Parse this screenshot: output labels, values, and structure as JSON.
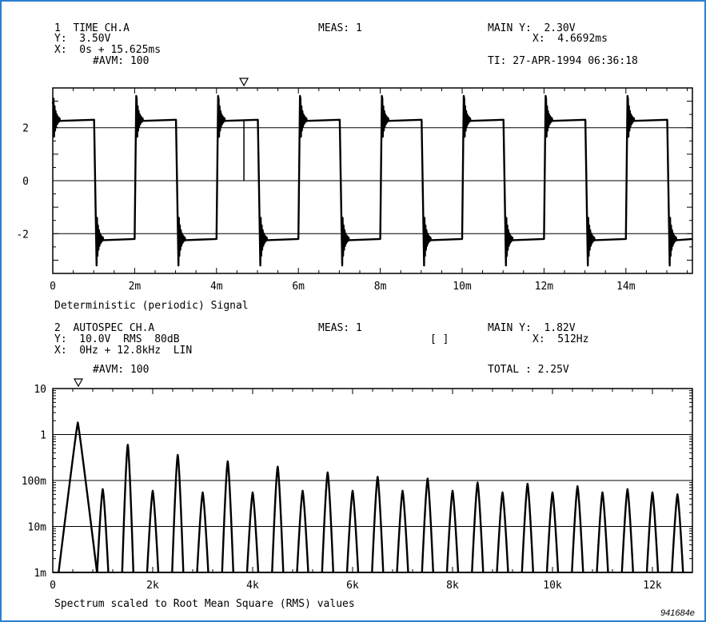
{
  "colors": {
    "border": "#2a7fd0",
    "ink": "#000000",
    "background": "#ffffff"
  },
  "figure_id": "941684e",
  "chart_data": [
    {
      "type": "line",
      "header": {
        "l1": "1  TIME CH.A",
        "l2": "Y:  3.50V",
        "l3": "X:  0s + 15.625ms",
        "l4": "#AVM: 100",
        "meas": "MEAS: 1",
        "main_y": "MAIN Y:  2.30V",
        "main_x": "X:  4.6692ms",
        "ti": "TI: 27-APR-1994 06:36:18"
      },
      "xlabel": "Deterministic (periodic) Signal",
      "xlim": [
        0,
        0.015625
      ],
      "ylim": [
        -3.5,
        3.5
      ],
      "x_ticks": [
        0,
        0.002,
        0.004,
        0.006,
        0.008,
        0.01,
        0.012,
        0.014
      ],
      "x_tick_labels": [
        "0",
        "2m",
        "4m",
        "6m",
        "8m",
        "10m",
        "12m",
        "14m"
      ],
      "y_ticks": [
        2,
        0,
        -2
      ],
      "y_tick_labels": [
        "2",
        "0",
        "-2"
      ],
      "gridlines_y": [
        2,
        0,
        -2
      ],
      "grid": false,
      "cursor_x": 0.0046692,
      "cursor_y": 2.3,
      "series": [
        {
          "waveform": "square",
          "period_s": 0.002,
          "first_rise_s": 0,
          "first_fall_s": 0.00103,
          "high_level_V": 2.3,
          "low_level_V": -2.2,
          "rise_overshoot_V": 3.2,
          "fall_undershoot_V": -3.2
        }
      ]
    },
    {
      "type": "line",
      "header": {
        "l1": "2  AUTOSPEC CH.A",
        "l2": "Y:  10.0V  RMS  80dB",
        "l3": "X:  0Hz + 12.8kHz  LIN",
        "l4": "#AVM: 100",
        "meas": "MEAS: 1",
        "brackets": "[ ]",
        "main_y": "MAIN Y:  1.82V",
        "main_x": "X:  512Hz",
        "total": "TOTAL : 2.25V"
      },
      "xlabel": "Spectrum scaled to Root Mean Square (RMS) values",
      "xlim": [
        0,
        12800
      ],
      "y_scale": "log",
      "ylim": [
        0.001,
        10
      ],
      "x_ticks": [
        0,
        2000,
        4000,
        6000,
        8000,
        10000,
        12000
      ],
      "x_tick_labels": [
        "0",
        "2k",
        "4k",
        "6k",
        "8k",
        "10k",
        "12k"
      ],
      "y_ticks": [
        10,
        1,
        0.1,
        0.01,
        0.001
      ],
      "y_tick_labels": [
        "10",
        "1",
        "100m",
        "10m",
        "1m"
      ],
      "gridlines_y": [
        1,
        0.1,
        0.01
      ],
      "grid": false,
      "cursor_x": 512,
      "series": [
        {
          "x": [
            500,
            1000,
            1500,
            2000,
            2500,
            3000,
            3500,
            4000,
            4500,
            5000,
            5500,
            6000,
            6500,
            7000,
            7500,
            8000,
            8500,
            9000,
            9500,
            10000,
            10500,
            11000,
            11500,
            12000,
            12500
          ],
          "values": [
            1.82,
            0.065,
            0.6,
            0.06,
            0.36,
            0.055,
            0.26,
            0.055,
            0.2,
            0.06,
            0.15,
            0.06,
            0.12,
            0.06,
            0.11,
            0.06,
            0.09,
            0.055,
            0.085,
            0.055,
            0.075,
            0.055,
            0.065,
            0.055,
            0.05
          ]
        }
      ]
    }
  ]
}
